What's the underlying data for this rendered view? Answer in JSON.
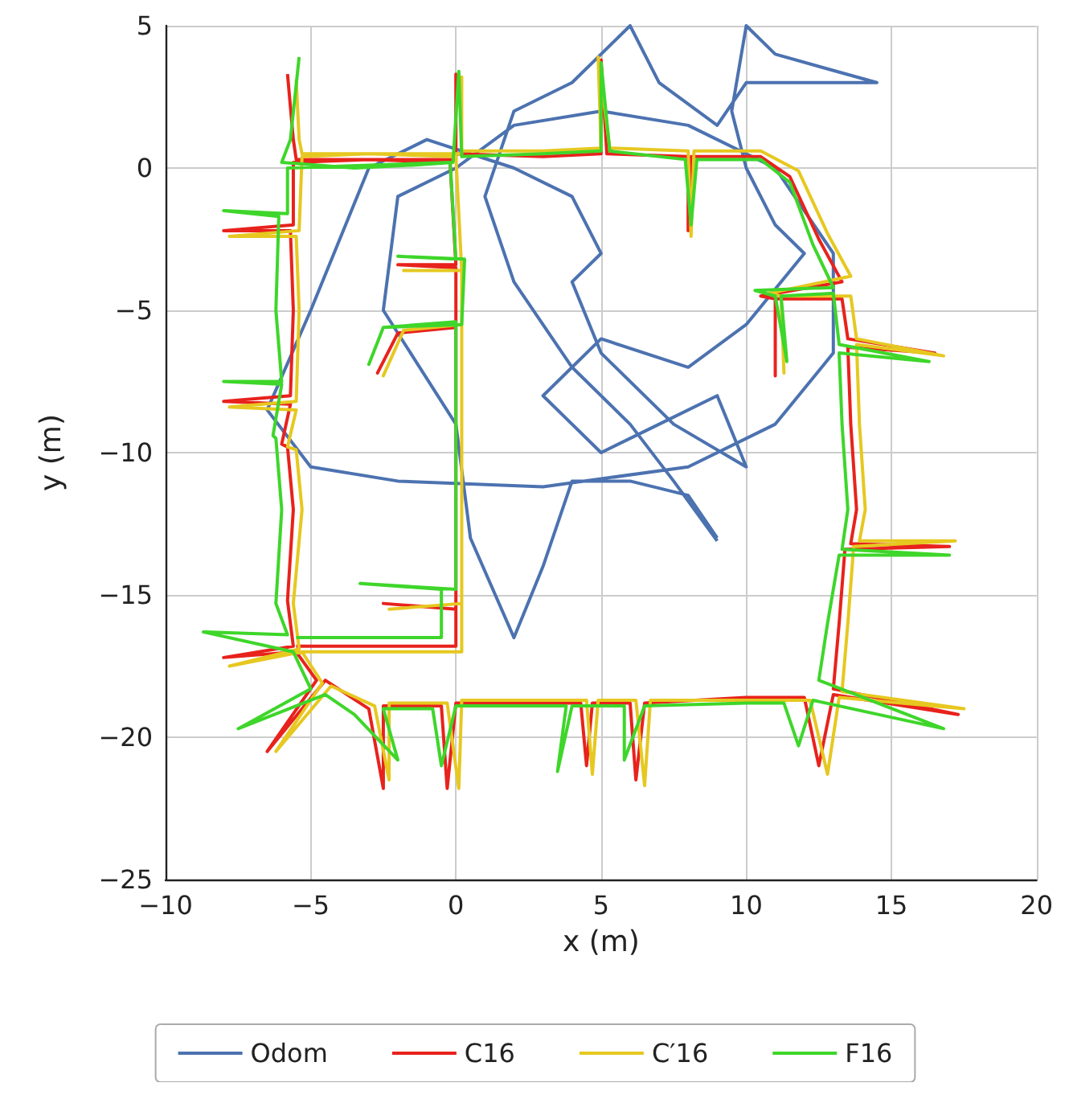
{
  "chart_data": {
    "type": "line",
    "xlabel": "x (m)",
    "ylabel": "y (m)",
    "xlim": [
      -10,
      20
    ],
    "ylim": [
      -25,
      5
    ],
    "xticks": [
      -10,
      -5,
      0,
      5,
      10,
      15,
      20
    ],
    "yticks": [
      -25,
      -20,
      -15,
      -10,
      -5,
      0,
      5
    ],
    "grid": true,
    "legend": "bottom",
    "series": [
      {
        "name": "Odom",
        "color": "#4c72b0",
        "x": [
          9,
          7.5,
          6,
          4,
          2,
          1,
          2,
          4,
          6,
          7,
          9,
          10,
          14.5,
          11,
          10,
          9.5,
          10,
          11,
          12,
          10,
          8,
          5,
          3,
          5,
          7,
          9,
          10,
          7.5,
          5,
          4,
          5,
          4,
          2,
          -1,
          -3,
          -5,
          -6.5,
          -5,
          -2,
          3,
          8,
          11,
          13,
          13,
          11,
          8,
          5,
          2,
          0,
          -2,
          -2.5,
          0,
          0.5,
          2,
          3,
          4,
          6,
          8,
          9
        ],
        "values": [
          -13.1,
          -11,
          -9,
          -7,
          -4,
          -1,
          2,
          3,
          5,
          3,
          1.5,
          3,
          3,
          4,
          5,
          2,
          0,
          -2,
          -3,
          -5.5,
          -7,
          -6,
          -8,
          -10,
          -9,
          -8,
          -10.5,
          -9,
          -6.5,
          -4,
          -3,
          -1,
          0,
          1,
          0,
          -5,
          -8.5,
          -10.5,
          -11,
          -11.2,
          -10.5,
          -9,
          -6.5,
          -3,
          0,
          1.5,
          2,
          1.5,
          0,
          -1,
          -5,
          -9,
          -13,
          -16.5,
          -14,
          -11,
          -11,
          -11.5,
          -13
        ]
      },
      {
        "name": "C16",
        "color": "#e8221c",
        "x": [
          -5.8,
          -5.6,
          -5.5,
          -3,
          -1.5,
          0,
          0,
          0,
          3,
          5,
          5,
          5.2,
          8,
          8,
          8.1,
          10.5,
          11.5,
          12.5,
          13.3,
          10.5,
          11,
          11,
          11,
          13.3,
          13.5,
          16.5,
          13.5,
          13.6,
          13.8,
          13.6,
          17,
          13.4,
          13.2,
          13,
          17.3,
          13,
          12.5,
          12,
          10,
          6.5,
          6.2,
          6,
          4.7,
          4.5,
          4.3,
          0,
          -0.3,
          -0.5,
          -2.5,
          -2.5,
          -3,
          -4.5,
          -6.5,
          -4.8,
          -5.5,
          -8,
          -5.6,
          -5.8,
          -5.6,
          -5.8,
          -6,
          -5.7,
          -8,
          -5.7,
          -5.6,
          -5.7,
          -8,
          -5.6,
          -5.6,
          -3,
          -0.2,
          0,
          -2,
          0,
          0,
          -2,
          -2.7,
          -2,
          0,
          0,
          0,
          -2.5,
          0,
          0,
          -5.5
        ],
        "values": [
          3.3,
          1,
          0.3,
          0.3,
          0.3,
          0.3,
          3.3,
          0.5,
          0.4,
          0.5,
          3.8,
          0.5,
          0.4,
          -2.2,
          0.4,
          0.4,
          -0.3,
          -2.5,
          -4,
          -4.5,
          -4.6,
          -7.3,
          -4.6,
          -4.6,
          -6,
          -6.5,
          -6.3,
          -9,
          -12,
          -13.2,
          -13.3,
          -13.4,
          -16,
          -18.3,
          -19.2,
          -18.5,
          -21,
          -18.6,
          -18.6,
          -18.8,
          -21.5,
          -18.8,
          -18.8,
          -21,
          -18.8,
          -18.8,
          -21.8,
          -18.9,
          -18.9,
          -21.8,
          -19,
          -18,
          -20.5,
          -18,
          -17,
          -17.2,
          -16.8,
          -15.2,
          -12,
          -9.8,
          -9.7,
          -8.3,
          -8.2,
          -8,
          -5,
          -2.2,
          -2.2,
          -2,
          0.2,
          0.3,
          0.2,
          -3.4,
          -3.4,
          -3.5,
          -5.6,
          -5.8,
          -7.2,
          -5.8,
          -5.6,
          -10,
          -15.5,
          -15.3,
          -15.5,
          -16.8,
          -16.8
        ]
      },
      {
        "name": "C′16",
        "color": "#e6c820",
        "x": [
          -5.5,
          -5.4,
          -5.3,
          -3,
          -1.5,
          0.2,
          0.2,
          0.2,
          3,
          5,
          4.9,
          5.3,
          8,
          8.1,
          8.2,
          10.5,
          11.8,
          12.8,
          13.6,
          10.8,
          11.2,
          11.3,
          11.2,
          13.6,
          13.8,
          16.8,
          13.8,
          13.9,
          14.1,
          13.9,
          17.2,
          13.7,
          13.5,
          13.3,
          17.5,
          13.2,
          12.8,
          12.2,
          10,
          6.7,
          6.5,
          6.2,
          4.9,
          4.7,
          4.5,
          0.2,
          0.1,
          -0.3,
          -2.3,
          -2.3,
          -2.8,
          -4.3,
          -6.2,
          -4.6,
          -5.3,
          -7.8,
          -5.4,
          -5.6,
          -5.3,
          -5.5,
          -5.8,
          -5.5,
          -7.8,
          -5.5,
          -5.4,
          -5.5,
          -7.8,
          -5.4,
          -5.3,
          -3,
          0,
          0.2,
          -1.8,
          0.2,
          0.2,
          -1.8,
          -2.5,
          -1.8,
          0.2,
          0.2,
          0.2,
          -2.3,
          0.2,
          0.2,
          -5.3
        ],
        "values": [
          3.1,
          1,
          0.5,
          0.5,
          0.5,
          0.5,
          3.2,
          0.6,
          0.6,
          0.7,
          3.9,
          0.7,
          0.6,
          -2.4,
          0.6,
          0.6,
          -0.1,
          -2.3,
          -3.8,
          -4.4,
          -4.5,
          -7.2,
          -4.5,
          -4.5,
          -6,
          -6.6,
          -6.2,
          -9,
          -12,
          -13.1,
          -13.1,
          -13.3,
          -16,
          -18.4,
          -19,
          -18.6,
          -21.3,
          -18.7,
          -18.7,
          -18.7,
          -21.7,
          -18.7,
          -18.7,
          -21.3,
          -18.7,
          -18.7,
          -21.8,
          -18.8,
          -18.8,
          -21.5,
          -18.9,
          -18.2,
          -20.5,
          -18.1,
          -17,
          -17.5,
          -16.9,
          -15.3,
          -12,
          -9.9,
          -9.8,
          -8.5,
          -8.4,
          -8.2,
          -5,
          -2.4,
          -2.4,
          -2.2,
          0.4,
          0.5,
          0.4,
          -3.6,
          -3.6,
          -3.6,
          -5.5,
          -5.7,
          -7.3,
          -5.7,
          -5.5,
          -10,
          -15.3,
          -15.5,
          -15.3,
          -17,
          -17
        ]
      },
      {
        "name": "F16",
        "color": "#3ed62a",
        "x": [
          -5.4,
          -5.7,
          -6,
          -3.5,
          -1.5,
          -0.1,
          0.1,
          0.2,
          3,
          5,
          5,
          5.3,
          7.9,
          8.1,
          8.3,
          10.5,
          11.5,
          12.3,
          13,
          10.3,
          11,
          11.4,
          11.2,
          13,
          13.2,
          16.3,
          13.2,
          13.3,
          13.5,
          13.3,
          17,
          13.2,
          12.8,
          12.5,
          16.8,
          12.3,
          11.8,
          11.3,
          10,
          6.5,
          5.8,
          5.8,
          4,
          3.5,
          3.8,
          0,
          -0.5,
          -0.8,
          -2.5,
          -2,
          -3.5,
          -4.5,
          -7.5,
          -5,
          -5.6,
          -8.7,
          -5.8,
          -6.2,
          -6,
          -6.2,
          -6.3,
          -6,
          -8,
          -6,
          -6.2,
          -6.1,
          -8,
          -5.8,
          -5.8,
          -3,
          -0.2,
          0,
          -2,
          0.3,
          0.2,
          -2.5,
          -3,
          -2.5,
          0,
          0,
          0,
          -3.3,
          -0.5,
          -0.5,
          -5.5
        ],
        "values": [
          3.9,
          1,
          0.2,
          0,
          0.1,
          0.2,
          3.4,
          0.4,
          0.5,
          0.6,
          3.7,
          0.6,
          0.3,
          -2,
          0.3,
          0.3,
          -0.5,
          -2.7,
          -4.2,
          -4.3,
          -4.5,
          -6.8,
          -4.5,
          -4.4,
          -6.2,
          -6.8,
          -6.5,
          -9,
          -12,
          -13.4,
          -13.6,
          -13.6,
          -16,
          -18,
          -19.7,
          -18.7,
          -20.3,
          -18.8,
          -18.8,
          -18.9,
          -20.8,
          -18.9,
          -18.9,
          -21.2,
          -18.9,
          -18.9,
          -21,
          -19,
          -19,
          -20.8,
          -19.2,
          -18.5,
          -19.7,
          -18.3,
          -17,
          -16.3,
          -16.4,
          -15.3,
          -12,
          -9.5,
          -9.4,
          -7.6,
          -7.5,
          -7.5,
          -5,
          -1.7,
          -1.5,
          -1.6,
          0,
          0.1,
          0.2,
          -3.2,
          -3.1,
          -3.2,
          -5.5,
          -5.6,
          -6.9,
          -5.6,
          -5.4,
          -10,
          -14.8,
          -14.6,
          -14.8,
          -16.5,
          -16.5
        ]
      }
    ]
  }
}
